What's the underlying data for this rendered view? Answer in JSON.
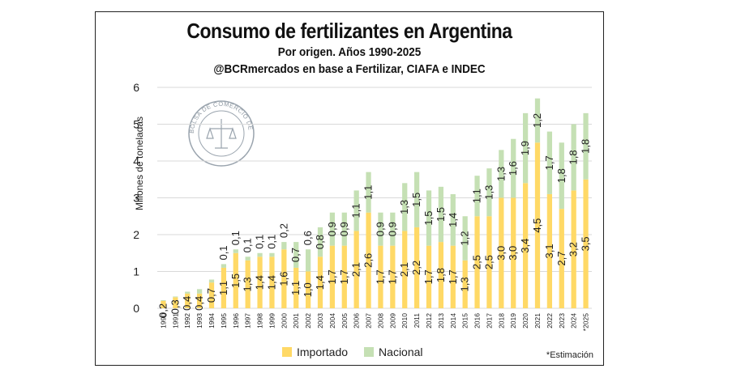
{
  "chart_data": {
    "type": "bar",
    "stacked": true,
    "title": "Consumo de fertilizantes en Argentina",
    "subtitle": "Por origen. Años 1990-2025",
    "source": "@BCRmercados en base a Fertilizar, CIAFA e INDEC",
    "ylabel": "Millones de toneladas",
    "ylim": [
      0,
      6
    ],
    "yticks": [
      "0",
      "1",
      "2",
      "3",
      "4",
      "5",
      "6"
    ],
    "categories": [
      "1990",
      "1991",
      "1992",
      "1993",
      "1994",
      "1995",
      "1996",
      "1997",
      "1998",
      "1999",
      "2000",
      "2001",
      "2002",
      "2003",
      "2004",
      "2005",
      "2006",
      "2007",
      "2008",
      "2009",
      "2010",
      "2011",
      "2012",
      "2013",
      "2014",
      "2015",
      "2016",
      "2017",
      "2018",
      "2019",
      "2020",
      "2021",
      "2022",
      "2023",
      "2024",
      "*2025"
    ],
    "series": [
      {
        "name": "Importado",
        "color": "#ffd966",
        "values": [
          0.2,
          0.3,
          0.4,
          0.4,
          0.7,
          1.1,
          1.5,
          1.3,
          1.4,
          1.4,
          1.6,
          1.1,
          1.0,
          1.4,
          1.7,
          1.7,
          2.1,
          2.6,
          1.7,
          1.7,
          2.1,
          2.2,
          1.7,
          1.8,
          1.7,
          1.3,
          2.5,
          2.5,
          3.0,
          3.0,
          3.4,
          4.5,
          3.1,
          2.7,
          3.2,
          3.5
        ],
        "labels": [
          "0,2",
          "0,3",
          "0,4",
          "0,4",
          "0,7",
          "1,1",
          "1,5",
          "1,3",
          "1,4",
          "1,4",
          "1,6",
          "1,1",
          "1,0",
          "1,4",
          "1,7",
          "1,7",
          "2,1",
          "2,6",
          "1,7",
          "1,7",
          "2,1",
          "2,2",
          "1,7",
          "1,8",
          "1,7",
          "1,3",
          "2,5",
          "2,5",
          "3,0",
          "3,0",
          "3,4",
          "4,5",
          "3,1",
          "2,7",
          "3,2",
          "3,5"
        ]
      },
      {
        "name": "Nacional",
        "color": "#c5e0b4",
        "values": [
          0.02,
          0.02,
          0.05,
          0.12,
          0.08,
          0.1,
          0.1,
          0.1,
          0.1,
          0.1,
          0.2,
          0.7,
          0.6,
          0.8,
          0.9,
          0.9,
          1.1,
          1.1,
          0.9,
          0.9,
          1.3,
          1.5,
          1.5,
          1.5,
          1.4,
          1.2,
          1.1,
          1.3,
          1.3,
          1.6,
          1.9,
          1.2,
          1.7,
          1.8,
          1.8,
          1.8
        ],
        "labels": [
          "",
          "",
          "",
          "",
          "",
          "0,1",
          "0,1",
          "0,1",
          "0,1",
          "0,1",
          "0,2",
          "0,7",
          "0,6",
          "0,8",
          "0,9",
          "0,9",
          "1,1",
          "1,1",
          "0,9",
          "0,9",
          "1,3",
          "1,5",
          "1,5",
          "1,5",
          "1,4",
          "1,2",
          "1,1",
          "1,3",
          "1,3",
          "1,6",
          "1,9",
          "1,2",
          "1,7",
          "1,8",
          "1,8",
          "1,8"
        ]
      }
    ],
    "legend": [
      "Importado",
      "Nacional"
    ],
    "note": "*Estimación",
    "watermark": "BOLSA DE COMERCIO DE ROSARIO"
  }
}
